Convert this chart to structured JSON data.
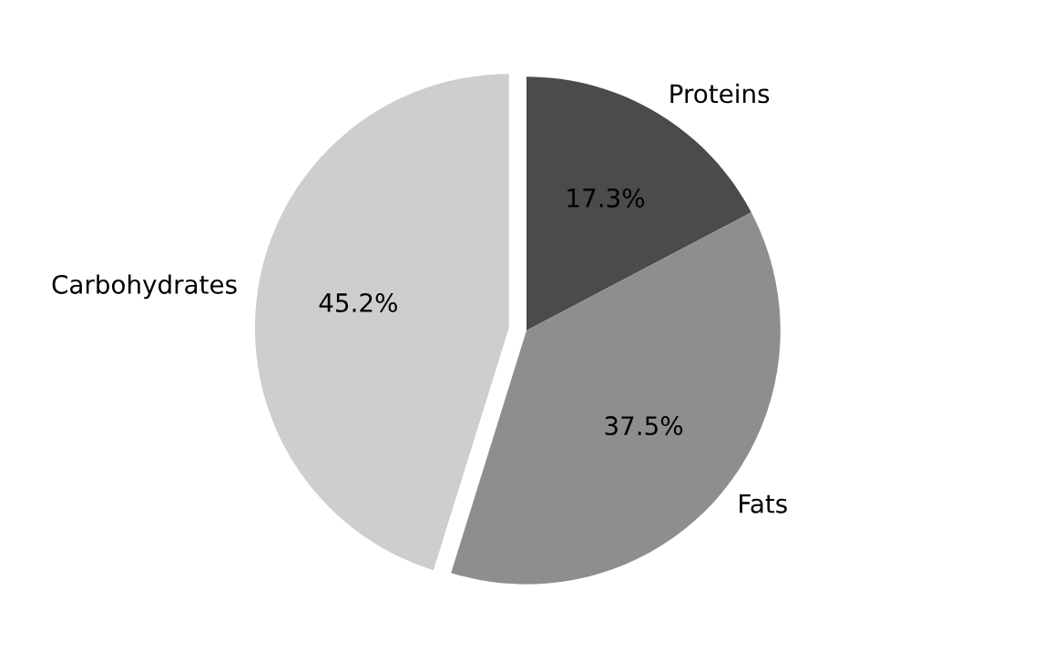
{
  "chart_data": {
    "type": "pie",
    "categories": [
      "Proteins",
      "Fats",
      "Carbohydrates"
    ],
    "values": [
      17.3,
      37.5,
      45.2
    ],
    "value_labels": [
      "17.3%",
      "37.5%",
      "45.2%"
    ],
    "colors": [
      "#4b4b4b",
      "#8e8e8e",
      "#cecece"
    ]
  }
}
